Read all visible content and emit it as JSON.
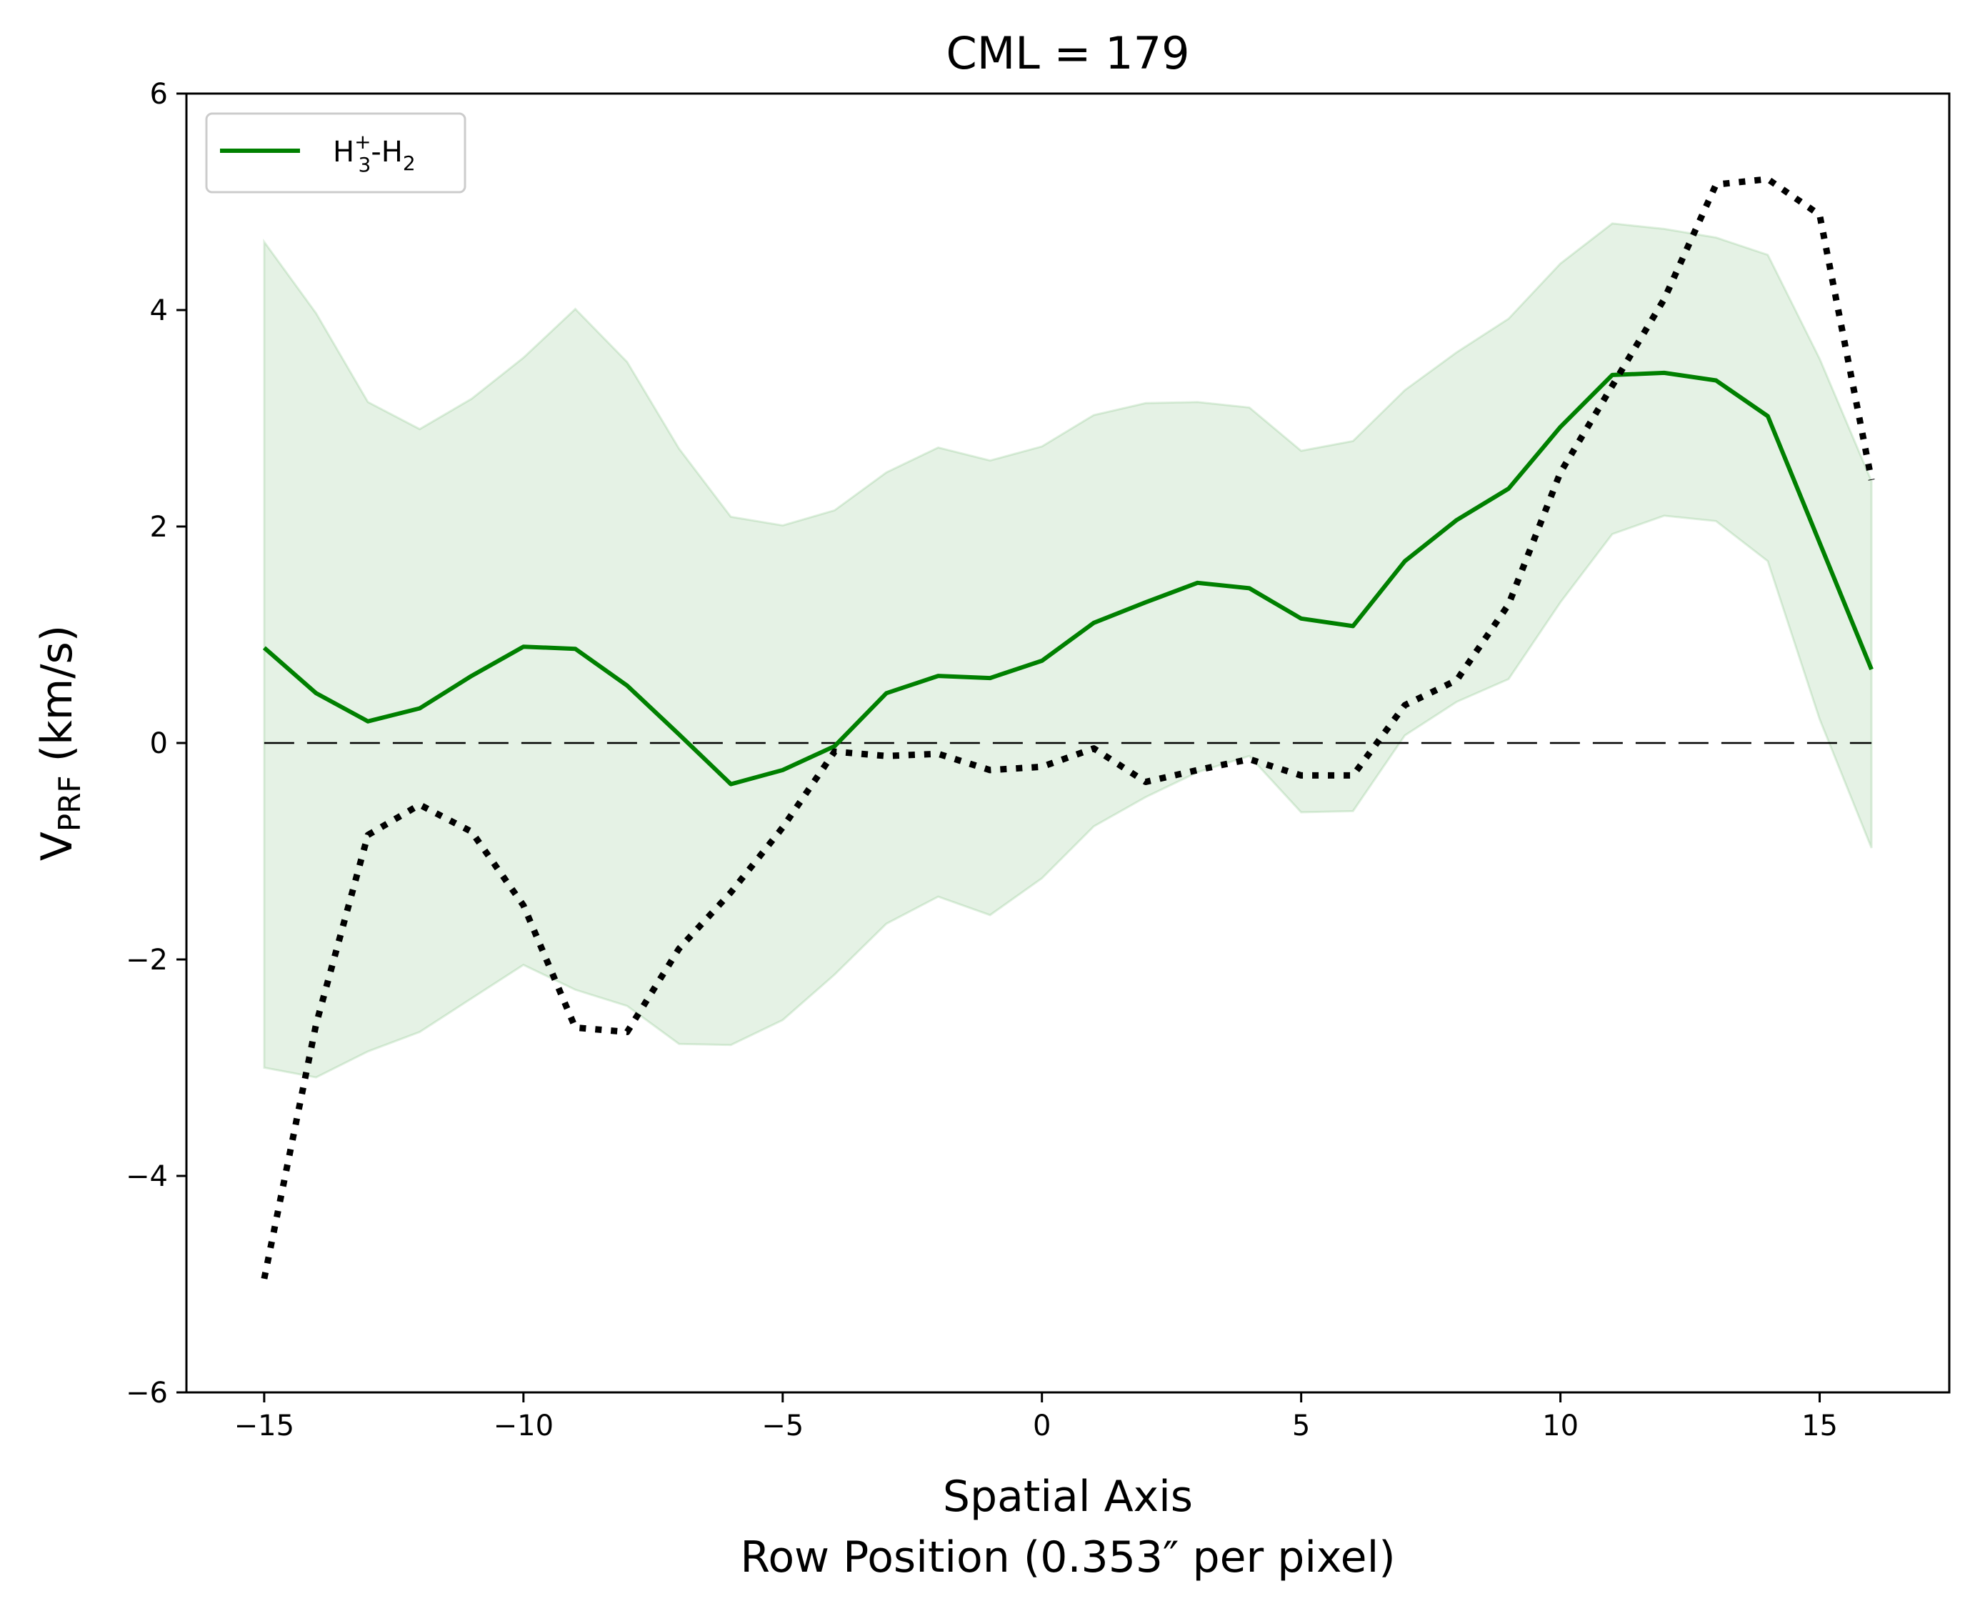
{
  "chart_data": {
    "type": "line",
    "title": "CML = 179",
    "xlabel_line1": "Spatial Axis",
    "xlabel_line2": "Row Position (0.353″ per pixel)",
    "ylabel_main": "V",
    "ylabel_sub": "PRF",
    "ylabel_unit": " (km/s)",
    "xlim": [
      -16.5,
      17.5
    ],
    "ylim": [
      -6,
      6
    ],
    "xticks": [
      -15,
      -10,
      -5,
      0,
      5,
      10,
      15
    ],
    "xtick_labels": [
      "−15",
      "−10",
      "−5",
      "0",
      "5",
      "10",
      "15"
    ],
    "yticks": [
      -6,
      -4,
      -2,
      0,
      2,
      4,
      6
    ],
    "ytick_labels": [
      "−6",
      "−4",
      "−2",
      "0",
      "2",
      "4",
      "6"
    ],
    "legend": {
      "placement": "top-left"
    },
    "x": [
      -15,
      -14,
      -13,
      -12,
      -11,
      -10,
      -9,
      -8,
      -7,
      -6,
      -5,
      -4,
      -3,
      -2,
      -1,
      0,
      1,
      2,
      3,
      4,
      5,
      6,
      7,
      8,
      9,
      10,
      11,
      12,
      13,
      14,
      15,
      16
    ],
    "series": [
      {
        "name_parts": [
          "H",
          "3",
          "+",
          "-H",
          "2"
        ],
        "color": "#008000",
        "style": "solid",
        "values": [
          0.88,
          0.46,
          0.2,
          0.32,
          0.62,
          0.89,
          0.87,
          0.53,
          0.08,
          -0.38,
          -0.25,
          -0.03,
          0.46,
          0.62,
          0.6,
          0.76,
          1.11,
          1.3,
          1.48,
          1.43,
          1.15,
          1.08,
          1.68,
          2.06,
          2.35,
          2.92,
          3.4,
          3.42,
          3.35,
          3.02,
          1.85,
          0.68
        ]
      },
      {
        "color": "#000000",
        "style": "dotted",
        "values": [
          -4.95,
          -2.6,
          -0.85,
          -0.57,
          -0.82,
          -1.5,
          -2.63,
          -2.67,
          -1.9,
          -1.38,
          -0.78,
          -0.08,
          -0.12,
          -0.1,
          -0.25,
          -0.22,
          -0.05,
          -0.36,
          -0.25,
          -0.15,
          -0.3,
          -0.3,
          0.35,
          0.58,
          1.28,
          2.5,
          3.3,
          4.1,
          5.16,
          5.21,
          4.88,
          2.43
        ]
      }
    ],
    "band": {
      "color": "#008000",
      "opacity": 0.1,
      "upper": [
        4.63,
        3.97,
        3.15,
        2.9,
        3.18,
        3.56,
        4.01,
        3.52,
        2.72,
        2.09,
        2.01,
        2.15,
        2.5,
        2.73,
        2.61,
        2.74,
        3.03,
        3.14,
        3.15,
        3.1,
        2.7,
        2.79,
        3.26,
        3.61,
        3.92,
        4.43,
        4.8,
        4.75,
        4.67,
        4.51,
        3.55,
        2.42
      ],
      "lower": [
        -3.0,
        -3.09,
        -2.85,
        -2.67,
        -2.36,
        -2.05,
        -2.28,
        -2.43,
        -2.78,
        -2.79,
        -2.56,
        -2.14,
        -1.67,
        -1.42,
        -1.59,
        -1.25,
        -0.77,
        -0.5,
        -0.27,
        -0.12,
        -0.64,
        -0.63,
        0.07,
        0.38,
        0.59,
        1.3,
        1.93,
        2.1,
        2.05,
        1.68,
        0.22,
        -0.97
      ]
    },
    "zero_line": {
      "y": 0,
      "x_range": [
        -15,
        16
      ],
      "style": "dashed",
      "color": "#000000"
    }
  }
}
